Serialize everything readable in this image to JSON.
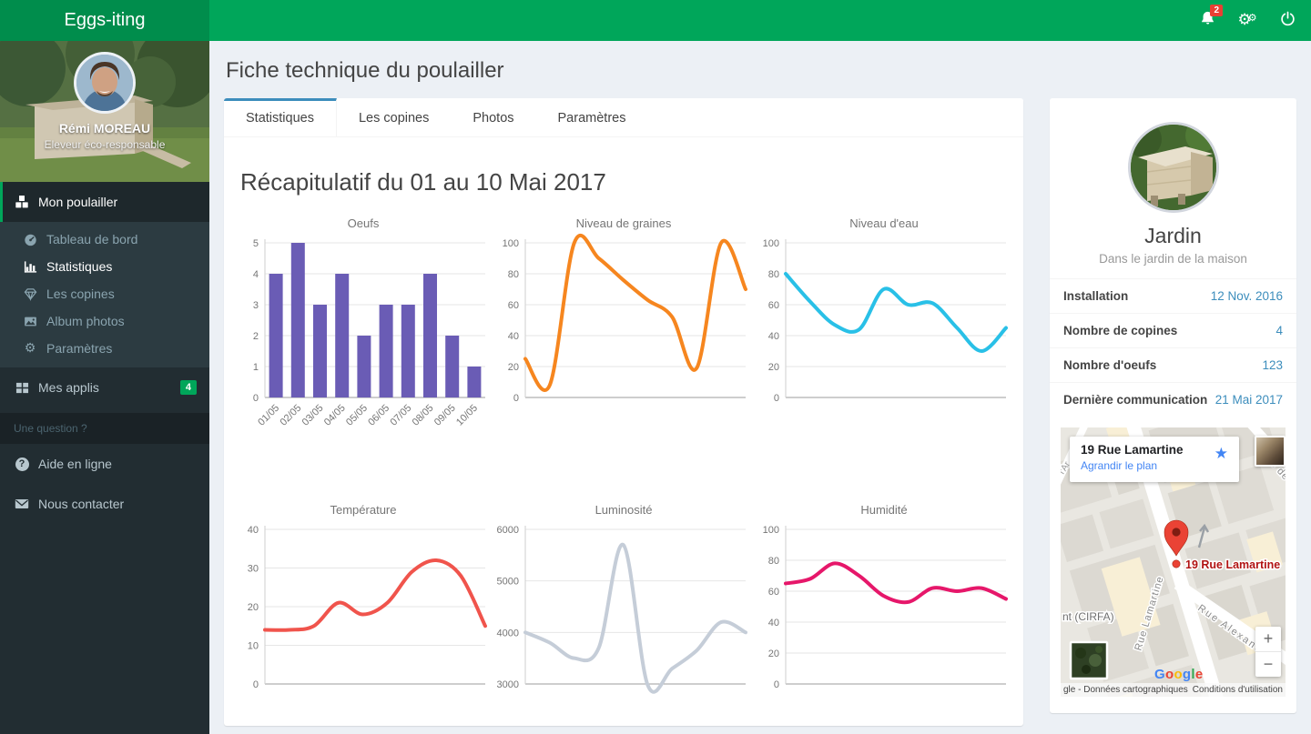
{
  "colors": {
    "navbar_green": "#00a65a",
    "logo_green": "#008d4c",
    "sidebar_dark": "#222d32",
    "accent_blue": "#3c8dbc",
    "badge_red": "#e93f33"
  },
  "navbar": {
    "brand": "Eggs-iting",
    "notification_count": "2"
  },
  "sidebar": {
    "user": {
      "name": "Rémi MOREAU",
      "role": "Eleveur éco-responsable"
    },
    "parent_item": {
      "label": "Mon poulailler"
    },
    "sub_items": [
      {
        "label": "Tableau de bord"
      },
      {
        "label": "Statistiques"
      },
      {
        "label": "Les copines"
      },
      {
        "label": "Album photos"
      },
      {
        "label": "Paramètres"
      }
    ],
    "apps_item": {
      "label": "Mes applis",
      "badge": "4"
    },
    "section_header": "Une question ?",
    "help_items": [
      {
        "label": "Aide en ligne"
      },
      {
        "label": "Nous contacter"
      }
    ]
  },
  "main": {
    "page_title": "Fiche technique du poulailler",
    "tabs": [
      {
        "label": "Statistiques",
        "active": true
      },
      {
        "label": "Les copines"
      },
      {
        "label": "Photos"
      },
      {
        "label": "Paramètres"
      }
    ],
    "section_title": "Récapitulatif du 01 au 10 Mai 2017"
  },
  "chart_data": [
    {
      "type": "bar",
      "title": "Oeufs",
      "categories": [
        "01/05",
        "02/05",
        "03/05",
        "04/05",
        "05/05",
        "06/05",
        "07/05",
        "08/05",
        "09/05",
        "10/05"
      ],
      "values": [
        4,
        5,
        3,
        4,
        2,
        3,
        3,
        4,
        2,
        1
      ],
      "ylim": [
        0,
        5
      ],
      "yticks": [
        0,
        1,
        2,
        3,
        4,
        5
      ],
      "color": "#6a5cb5",
      "grid": true,
      "legend": "none"
    },
    {
      "type": "line",
      "title": "Niveau de graines",
      "values": [
        25,
        8,
        100,
        90,
        76,
        63,
        52,
        19,
        100,
        70
      ],
      "ylim": [
        0,
        100
      ],
      "yticks": [
        0,
        20,
        40,
        60,
        80,
        100
      ],
      "color": "#f6861f",
      "grid": true,
      "x_labels_hidden": true
    },
    {
      "type": "line",
      "title": "Niveau d'eau",
      "values": [
        80,
        62,
        47,
        44,
        70,
        60,
        61,
        45,
        30,
        45
      ],
      "ylim": [
        0,
        100
      ],
      "yticks": [
        0,
        20,
        40,
        60,
        80,
        100
      ],
      "color": "#29c0e7",
      "grid": true,
      "x_labels_hidden": true
    },
    {
      "type": "line",
      "title": "Température",
      "values": [
        14,
        14,
        15,
        21,
        18,
        21,
        29,
        32,
        28,
        15
      ],
      "ylim": [
        0,
        40
      ],
      "yticks": [
        0,
        10,
        20,
        30,
        40
      ],
      "color": "#f0544c",
      "grid": true,
      "x_labels_hidden": true
    },
    {
      "type": "line",
      "title": "Luminosité",
      "values": [
        4000,
        3800,
        3500,
        3700,
        5700,
        2980,
        3300,
        3650,
        4200,
        4000
      ],
      "ylim": [
        3000,
        6000
      ],
      "yticks": [
        3000,
        4000,
        5000,
        6000
      ],
      "color": "#c5cdd8",
      "grid": true,
      "x_labels_hidden": true
    },
    {
      "type": "line",
      "title": "Humidité",
      "values": [
        65,
        68,
        78,
        70,
        57,
        53,
        62,
        60,
        62,
        55
      ],
      "ylim": [
        0,
        100
      ],
      "yticks": [
        0,
        20,
        40,
        60,
        80,
        100
      ],
      "color": "#e6176a",
      "grid": true,
      "x_labels_hidden": true
    }
  ],
  "profile": {
    "title": "Jardin",
    "subtitle": "Dans le jardin de la maison",
    "rows": [
      {
        "label": "Installation",
        "value": "12 Nov. 2016"
      },
      {
        "label": "Nombre de copines",
        "value": "4"
      },
      {
        "label": "Nombre d'oeufs",
        "value": "123"
      },
      {
        "label": "Dernière communication",
        "value": "21 Mai 2017"
      }
    ]
  },
  "map": {
    "info_title": "19 Rue Lamartine",
    "info_link": "Agrandir le plan",
    "pin_label": "19 Rue Lamartine",
    "street_label_1": "Rue Lamartine",
    "street_label_2": "Rue Alexand",
    "street_label_3": "Rue de",
    "street_label_4": "l'Ar",
    "area_label": "nt (CIRFA)",
    "google_letters": [
      "G",
      "o",
      "o",
      "g",
      "l",
      "e"
    ],
    "attribution_left": "gle - Données cartographiques",
    "attribution_right": "Conditions d'utilisation",
    "zoom_in": "+",
    "zoom_out": "−"
  }
}
